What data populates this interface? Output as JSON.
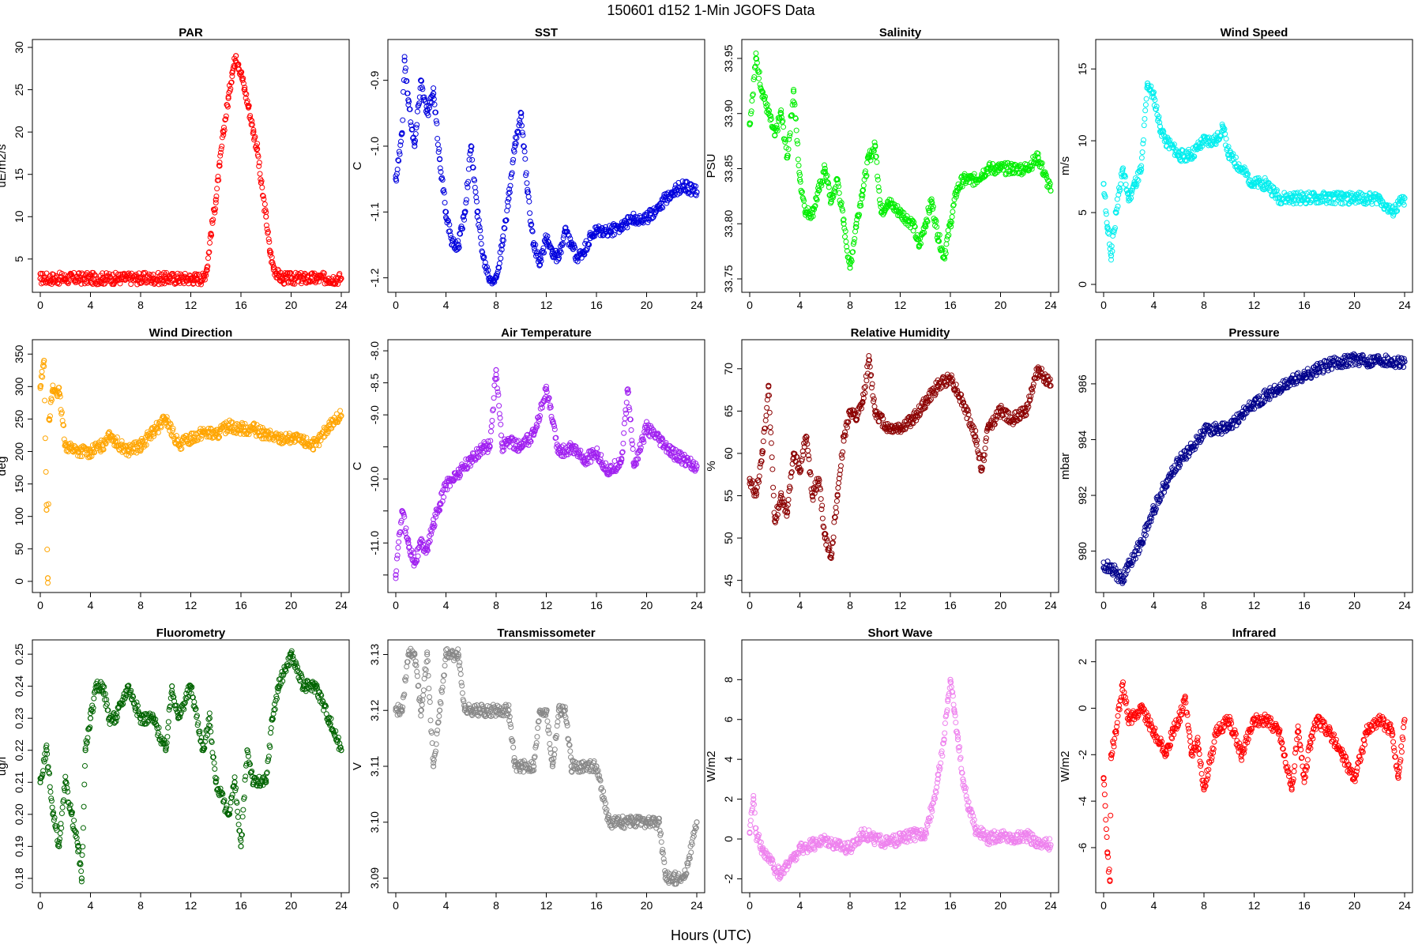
{
  "figure": {
    "title": "150601   d152   1-Min  JGOFS Data",
    "xlabel": "Hours (UTC)"
  },
  "chart_data": [
    {
      "type": "scatter",
      "title": "PAR",
      "ylabel": "uE/m2/s",
      "color": "#ff0000",
      "xlim": [
        0,
        24
      ],
      "xticks": [
        0,
        4,
        8,
        12,
        16,
        20,
        24
      ],
      "ylim": [
        2,
        30
      ],
      "yticks": [
        5,
        10,
        15,
        20,
        25,
        30
      ],
      "ytick_labels": [
        "5",
        "10",
        "15",
        "20",
        "25",
        "30"
      ],
      "x": [
        0,
        1,
        2,
        3,
        4,
        5,
        6,
        7,
        8,
        9,
        10,
        11,
        12,
        12.5,
        13,
        13.3,
        13.6,
        14,
        14.3,
        14.6,
        15,
        15.3,
        15.6,
        15.8,
        16,
        16.3,
        16.6,
        17,
        17.3,
        17.6,
        18,
        18.3,
        18.6,
        19,
        19.3,
        19.6,
        20,
        21,
        22,
        23,
        24
      ],
      "y": [
        2.7,
        2.7,
        2.7,
        2.7,
        2.7,
        2.7,
        2.7,
        2.7,
        2.7,
        2.7,
        2.7,
        2.7,
        2.7,
        2.7,
        2.7,
        4,
        8,
        12,
        16,
        20,
        24,
        27,
        29,
        28,
        27,
        25,
        23,
        20,
        18,
        14,
        10,
        6,
        4,
        3,
        2.7,
        2.7,
        2.7,
        2.7,
        2.7,
        2.7,
        2.7
      ]
    },
    {
      "type": "scatter",
      "title": "SST",
      "ylabel": "C",
      "color": "#0000dd",
      "xlim": [
        0,
        24
      ],
      "xticks": [
        0,
        4,
        8,
        12,
        16,
        20,
        24
      ],
      "ylim": [
        -1.21,
        -0.85
      ],
      "yticks": [
        -0.9,
        -1.0,
        -1.1,
        -1.2
      ],
      "ytick_labels": [
        "-0.9",
        "-1.0",
        "-1.1",
        "-1.2"
      ],
      "x": [
        0,
        0.5,
        0.7,
        1,
        1.5,
        2,
        2.5,
        3,
        3.5,
        4,
        4.5,
        5,
        5.5,
        6,
        6.5,
        7,
        7.5,
        8,
        8.5,
        9,
        9.5,
        10,
        10.5,
        11,
        11.5,
        12,
        12.5,
        13,
        13.5,
        14,
        14.5,
        15,
        15.5,
        16,
        17,
        18,
        19,
        20,
        21,
        22,
        23,
        24
      ],
      "y": [
        -1.05,
        -0.98,
        -0.87,
        -0.93,
        -1.0,
        -0.9,
        -0.95,
        -0.92,
        -1.02,
        -1.1,
        -1.15,
        -1.15,
        -1.1,
        -1.0,
        -1.1,
        -1.17,
        -1.2,
        -1.2,
        -1.15,
        -1.08,
        -1.0,
        -0.95,
        -1.07,
        -1.15,
        -1.18,
        -1.14,
        -1.16,
        -1.17,
        -1.13,
        -1.15,
        -1.17,
        -1.16,
        -1.14,
        -1.13,
        -1.13,
        -1.12,
        -1.11,
        -1.11,
        -1.09,
        -1.07,
        -1.06,
        -1.07
      ]
    },
    {
      "type": "scatter",
      "title": "Salinity",
      "ylabel": "PSU",
      "color": "#00ee00",
      "xlim": [
        0,
        24
      ],
      "xticks": [
        0,
        4,
        8,
        12,
        16,
        20,
        24
      ],
      "ylim": [
        33.745,
        33.96
      ],
      "yticks": [
        33.75,
        33.8,
        33.85,
        33.9,
        33.95
      ],
      "ytick_labels": [
        "33.75",
        "33.80",
        "33.85",
        "33.90",
        "33.95"
      ],
      "x": [
        0,
        0.5,
        1,
        1.5,
        2,
        2.5,
        3,
        3.5,
        4,
        4.5,
        5,
        5.5,
        6,
        6.5,
        7,
        7.5,
        8,
        8.5,
        9,
        9.5,
        10,
        10.5,
        11,
        12,
        13,
        13.5,
        14,
        14.5,
        15,
        15.5,
        16,
        16.5,
        17,
        18,
        19,
        20,
        21,
        22,
        23,
        24
      ],
      "y": [
        33.89,
        33.95,
        33.92,
        33.9,
        33.88,
        33.9,
        33.86,
        33.92,
        33.84,
        33.81,
        33.81,
        33.83,
        33.85,
        33.82,
        33.84,
        33.8,
        33.76,
        33.8,
        33.83,
        33.86,
        33.87,
        33.81,
        33.82,
        33.81,
        33.8,
        33.78,
        33.8,
        33.82,
        33.79,
        33.77,
        33.8,
        33.83,
        33.84,
        33.84,
        33.85,
        33.85,
        33.85,
        33.85,
        33.86,
        33.83
      ]
    },
    {
      "type": "scatter",
      "title": "Wind Speed",
      "ylabel": "m/s",
      "color": "#00eeee",
      "xlim": [
        0,
        24
      ],
      "xticks": [
        0,
        4,
        8,
        12,
        16,
        20,
        24
      ],
      "ylim": [
        0,
        16.5
      ],
      "yticks": [
        0,
        5,
        10,
        15
      ],
      "ytick_labels": [
        "0",
        "5",
        "10",
        "15"
      ],
      "x": [
        0,
        0.3,
        0.6,
        1,
        1.5,
        2,
        2.5,
        3,
        3.5,
        4,
        4.5,
        5,
        6,
        7,
        8,
        9,
        9.5,
        10,
        11,
        12,
        13,
        14,
        15,
        16,
        17,
        18,
        19,
        20,
        21,
        22,
        23,
        24
      ],
      "y": [
        7,
        4,
        2,
        5,
        8,
        6,
        7,
        8,
        14,
        13,
        11,
        10,
        9,
        9,
        10,
        10,
        11,
        9,
        8,
        7,
        7,
        6,
        6,
        6,
        6,
        6,
        6,
        6,
        6,
        6,
        5,
        6
      ]
    },
    {
      "type": "scatter",
      "title": "Wind Direction",
      "ylabel": "deg",
      "color": "#ffa500",
      "xlim": [
        0,
        24
      ],
      "xticks": [
        0,
        4,
        8,
        12,
        16,
        20,
        24
      ],
      "ylim": [
        -5,
        360
      ],
      "yticks": [
        0,
        50,
        100,
        150,
        200,
        250,
        300,
        350
      ],
      "ytick_labels": [
        "0",
        "50",
        "100",
        "150",
        "200",
        "250",
        "300",
        "350"
      ],
      "x": [
        0,
        0.3,
        0.5,
        0.6,
        0.7,
        1,
        1.5,
        2,
        2.5,
        3,
        4,
        5,
        5.5,
        6,
        7,
        8,
        9,
        10,
        11,
        12,
        13,
        14,
        15,
        16,
        17,
        18,
        19,
        20,
        21,
        22,
        23,
        24
      ],
      "y": [
        300,
        340,
        110,
        5,
        250,
        295,
        290,
        210,
        205,
        200,
        200,
        210,
        230,
        215,
        200,
        210,
        230,
        250,
        210,
        220,
        230,
        225,
        240,
        235,
        235,
        225,
        220,
        220,
        215,
        210,
        240,
        255
      ]
    },
    {
      "type": "scatter",
      "title": "Air Temperature",
      "ylabel": "C",
      "color": "#a020f0",
      "xlim": [
        0,
        24
      ],
      "xticks": [
        0,
        4,
        8,
        12,
        16,
        20,
        24
      ],
      "ylim": [
        -11.65,
        -7.95
      ],
      "yticks": [
        -8.0,
        -8.5,
        -9.0,
        -9.5,
        -10.0,
        -10.5,
        -11.0,
        -11.5
      ],
      "ytick_labels": [
        "-8.0",
        "-8.5",
        "-9.0",
        "",
        "-10.0",
        "",
        "-11.0",
        ""
      ],
      "x": [
        0,
        0.5,
        1,
        1.5,
        2,
        2.5,
        3,
        3.5,
        4,
        4.5,
        5,
        6,
        7,
        7.5,
        8,
        8.5,
        9,
        10,
        11,
        12,
        13,
        14,
        15,
        16,
        17,
        18,
        18.5,
        19,
        20,
        21,
        22,
        23,
        24
      ],
      "y": [
        -11.5,
        -10.5,
        -11,
        -11.3,
        -11,
        -11.1,
        -10.7,
        -10.4,
        -10.1,
        -10,
        -9.9,
        -9.7,
        -9.5,
        -9.5,
        -8.3,
        -9.5,
        -9.4,
        -9.5,
        -9.3,
        -8.6,
        -9.6,
        -9.5,
        -9.7,
        -9.6,
        -9.9,
        -9.7,
        -8.6,
        -9.8,
        -9.2,
        -9.4,
        -9.6,
        -9.7,
        -9.8
      ]
    },
    {
      "type": "scatter",
      "title": "Relative Humidity",
      "ylabel": "%",
      "color": "#8b0000",
      "xlim": [
        0,
        24
      ],
      "xticks": [
        0,
        4,
        8,
        12,
        16,
        20,
        24
      ],
      "ylim": [
        44.5,
        72.5
      ],
      "yticks": [
        45,
        50,
        55,
        60,
        65,
        70
      ],
      "ytick_labels": [
        "45",
        "50",
        "55",
        "60",
        "65",
        "70"
      ],
      "x": [
        0,
        0.5,
        1,
        1.5,
        2,
        2.5,
        3,
        3.5,
        4,
        4.5,
        5,
        5.5,
        6,
        6.5,
        7,
        7.5,
        8,
        8.5,
        9,
        9.5,
        10,
        11,
        12,
        13,
        14,
        15,
        16,
        17,
        18,
        18.5,
        19,
        20,
        21,
        22,
        23,
        24
      ],
      "y": [
        57,
        55,
        60,
        68,
        52,
        55,
        53,
        60,
        58,
        62,
        55,
        57,
        50,
        48,
        55,
        62,
        65,
        64,
        66,
        71,
        65,
        63,
        63,
        64,
        66,
        68,
        69,
        66,
        62,
        58,
        63,
        65,
        64,
        65,
        70,
        68
      ]
    },
    {
      "type": "scatter",
      "title": "Pressure",
      "ylabel": "mbar",
      "color": "#00008b",
      "xlim": [
        0,
        24
      ],
      "xticks": [
        0,
        4,
        8,
        12,
        16,
        20,
        24
      ],
      "ylim": [
        978.8,
        987.3
      ],
      "yticks": [
        980,
        982,
        984,
        986
      ],
      "ytick_labels": [
        "980",
        "982",
        "984",
        "986"
      ],
      "x": [
        0,
        0.5,
        1,
        1.5,
        2,
        3,
        4,
        5,
        6,
        7,
        8,
        9,
        10,
        11,
        12,
        13,
        14,
        15,
        16,
        17,
        18,
        19,
        20,
        21,
        22,
        23,
        24
      ],
      "y": [
        979.4,
        979.5,
        979.2,
        979,
        979.5,
        980.3,
        981.5,
        982.5,
        983.2,
        983.7,
        984.3,
        984.4,
        984.4,
        984.9,
        985.3,
        985.6,
        985.8,
        986.1,
        986.3,
        986.5,
        986.7,
        986.8,
        986.9,
        986.8,
        986.9,
        986.8,
        986.8
      ]
    },
    {
      "type": "scatter",
      "title": "Fluorometry",
      "ylabel": "ug/l",
      "color": "#006400",
      "xlim": [
        0,
        24
      ],
      "xticks": [
        0,
        4,
        8,
        12,
        16,
        20,
        24
      ],
      "ylim": [
        0.178,
        0.252
      ],
      "yticks": [
        0.18,
        0.19,
        0.2,
        0.21,
        0.22,
        0.23,
        0.24,
        0.25
      ],
      "ytick_labels": [
        "0.18",
        "0.19",
        "0.20",
        "0.21",
        "0.22",
        "0.23",
        "0.24",
        "0.25"
      ],
      "x": [
        0,
        0.5,
        1,
        1.5,
        2,
        2.5,
        3,
        3.3,
        3.6,
        4,
        4.5,
        5,
        5.5,
        6,
        7,
        8,
        9,
        10,
        10.5,
        11,
        12,
        13,
        13.5,
        14,
        15,
        15.5,
        16,
        16.5,
        17,
        18,
        18.5,
        19,
        20,
        21,
        22,
        23,
        24
      ],
      "y": [
        0.21,
        0.22,
        0.2,
        0.19,
        0.21,
        0.2,
        0.19,
        0.18,
        0.22,
        0.23,
        0.24,
        0.24,
        0.23,
        0.23,
        0.24,
        0.23,
        0.23,
        0.22,
        0.24,
        0.23,
        0.24,
        0.22,
        0.23,
        0.21,
        0.2,
        0.21,
        0.19,
        0.22,
        0.21,
        0.21,
        0.23,
        0.24,
        0.25,
        0.24,
        0.24,
        0.23,
        0.22
      ]
    },
    {
      "type": "scatter",
      "title": "Transmissometer",
      "ylabel": "V",
      "color": "#888888",
      "xlim": [
        0,
        24
      ],
      "xticks": [
        0,
        4,
        8,
        12,
        16,
        20,
        24
      ],
      "ylim": [
        3.0888,
        3.1312
      ],
      "yticks": [
        3.09,
        3.1,
        3.11,
        3.12,
        3.13
      ],
      "ytick_labels": [
        "3.09",
        "3.10",
        "3.11",
        "3.12",
        "3.13"
      ],
      "x": [
        0,
        0.5,
        1,
        1.5,
        2,
        2.5,
        3,
        3.5,
        4,
        4.5,
        5,
        5.5,
        6,
        7,
        8,
        9,
        9.5,
        10,
        11,
        11.5,
        12,
        12.5,
        13,
        13.5,
        14,
        15,
        16,
        17,
        18,
        19,
        20,
        21,
        21.5,
        22,
        22.5,
        23,
        24
      ],
      "y": [
        3.12,
        3.12,
        3.13,
        3.13,
        3.12,
        3.13,
        3.11,
        3.12,
        3.13,
        3.13,
        3.13,
        3.12,
        3.12,
        3.12,
        3.12,
        3.12,
        3.11,
        3.11,
        3.11,
        3.12,
        3.12,
        3.11,
        3.12,
        3.12,
        3.11,
        3.11,
        3.11,
        3.1,
        3.1,
        3.1,
        3.1,
        3.1,
        3.09,
        3.09,
        3.09,
        3.09,
        3.1
      ]
    },
    {
      "type": "scatter",
      "title": "Short Wave",
      "ylabel": "W/m2",
      "color": "#ee82ee",
      "xlim": [
        0,
        24
      ],
      "xticks": [
        0,
        4,
        8,
        12,
        16,
        20,
        24
      ],
      "ylim": [
        -2.3,
        9.6
      ],
      "yticks": [
        -2,
        0,
        2,
        4,
        6,
        8
      ],
      "ytick_labels": [
        "-2",
        "0",
        "2",
        "4",
        "6",
        "8"
      ],
      "x": [
        0,
        0.3,
        0.5,
        1,
        1.5,
        2,
        2.5,
        3,
        3.5,
        4,
        5,
        6,
        7,
        8,
        9,
        10,
        11,
        12,
        13,
        14,
        14.5,
        15,
        15.5,
        15.8,
        16,
        16.3,
        16.6,
        17,
        17.5,
        18,
        19,
        20,
        21,
        22,
        23,
        24
      ],
      "y": [
        0.3,
        2,
        0.3,
        -0.5,
        -1,
        -1.5,
        -1.8,
        -1.2,
        -1,
        -0.5,
        -0.3,
        0,
        -0.3,
        -0.5,
        0.3,
        0,
        -0.2,
        0,
        0.2,
        0.3,
        1.5,
        3,
        5,
        7,
        8,
        6.5,
        5,
        3,
        1.5,
        0.5,
        0,
        0.2,
        0,
        0.2,
        -0.2,
        -0.3
      ]
    },
    {
      "type": "scatter",
      "title": "Infrared",
      "ylabel": "W/m2",
      "color": "#ff0000",
      "xlim": [
        0,
        24
      ],
      "xticks": [
        0,
        4,
        8,
        12,
        16,
        20,
        24
      ],
      "ylim": [
        -7.6,
        2.6
      ],
      "yticks": [
        -6,
        -4,
        -2,
        0,
        2
      ],
      "ytick_labels": [
        "-6",
        "-4",
        "-2",
        "0",
        "2"
      ],
      "x": [
        0,
        0.3,
        0.5,
        0.6,
        1,
        1.5,
        2,
        2.5,
        3,
        3.5,
        4,
        4.5,
        5,
        5.5,
        6,
        6.5,
        7,
        7.5,
        8,
        9,
        10,
        11,
        12,
        13,
        14,
        15,
        15.5,
        16,
        16.5,
        17,
        18,
        19,
        20,
        21,
        22,
        23,
        23.5,
        24
      ],
      "y": [
        -3,
        -6.2,
        -7.4,
        -2,
        -1,
        1,
        -0.5,
        -0.3,
        0,
        -0.5,
        -1,
        -1.5,
        -2,
        -1,
        -0.5,
        0.5,
        -2,
        -1.5,
        -3.5,
        -1,
        -0.5,
        -2,
        -0.5,
        -0.5,
        -1,
        -3.5,
        -1,
        -3,
        -1.5,
        -0.5,
        -1,
        -2,
        -3,
        -1,
        -0.5,
        -1,
        -3,
        -0.5
      ]
    }
  ]
}
